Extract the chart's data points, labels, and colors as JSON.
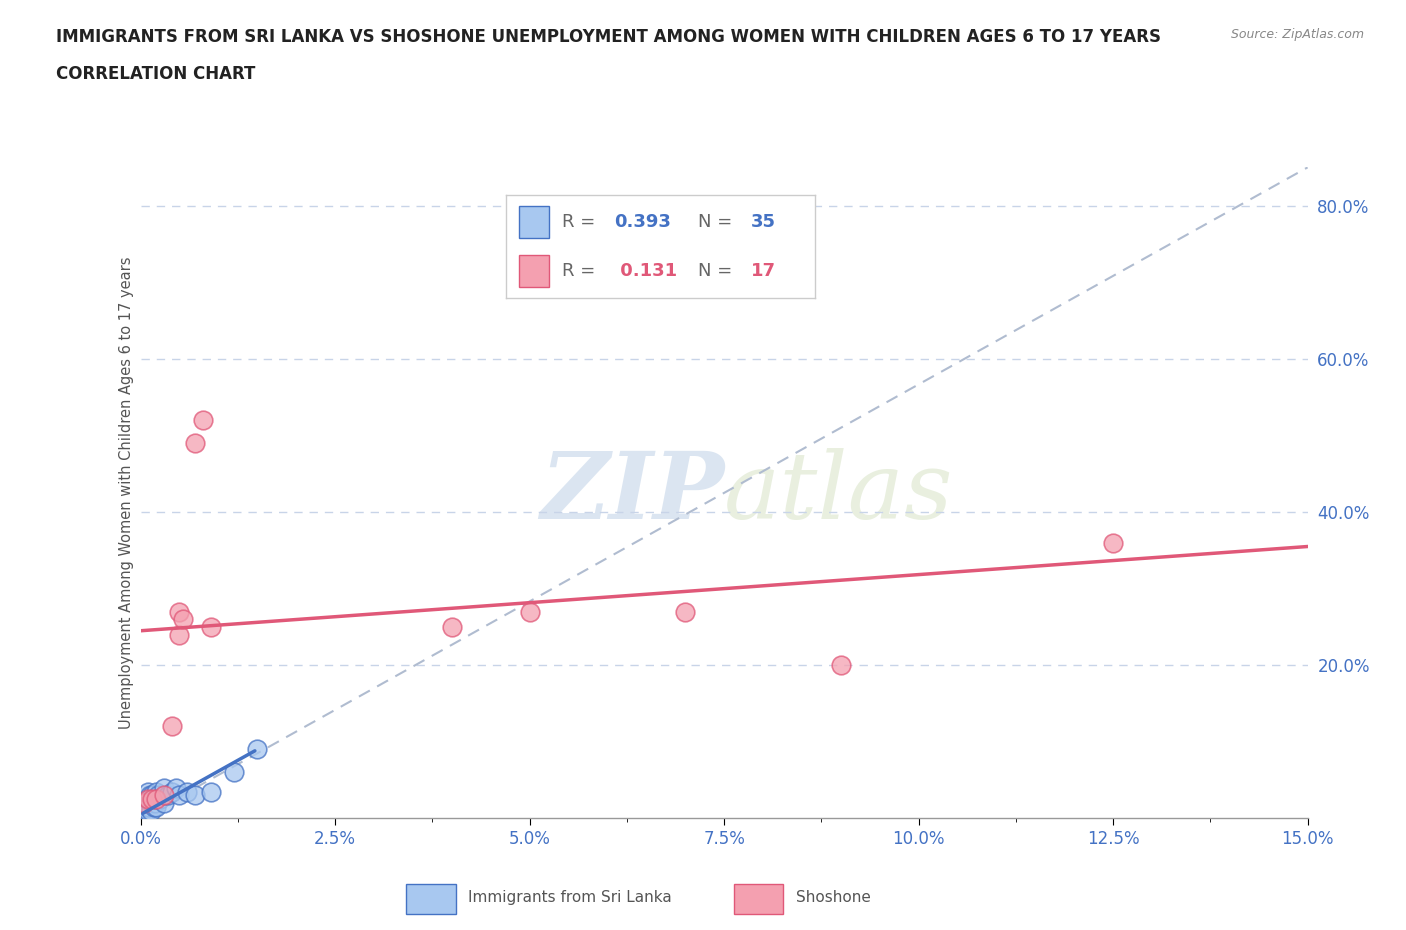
{
  "title_line1": "IMMIGRANTS FROM SRI LANKA VS SHOSHONE UNEMPLOYMENT AMONG WOMEN WITH CHILDREN AGES 6 TO 17 YEARS",
  "title_line2": "CORRELATION CHART",
  "source": "Source: ZipAtlas.com",
  "xlabel_ticks": [
    "0.0%",
    "2.5%",
    "5.0%",
    "7.5%",
    "10.0%",
    "12.5%",
    "15.0%"
  ],
  "ylabel_label": "Unemployment Among Women with Children Ages 6 to 17 years",
  "ylabel_ticks": [
    "20.0%",
    "40.0%",
    "60.0%",
    "80.0%"
  ],
  "xlim": [
    0.0,
    0.15
  ],
  "ylim": [
    0.0,
    0.85
  ],
  "watermark_zip": "ZIP",
  "watermark_atlas": "atlas",
  "color_sri_lanka": "#a8c8f0",
  "color_shoshone": "#f4a0b0",
  "color_line_sri_lanka": "#4472c4",
  "color_line_shoshone": "#e05878",
  "color_title": "#222222",
  "color_r_value": "#4472c4",
  "color_r_value2": "#e05878",
  "background_color": "#ffffff",
  "grid_color": "#c8d4e8",
  "sri_lanka_x": [
    0.0005,
    0.0005,
    0.0007,
    0.0008,
    0.0008,
    0.0009,
    0.001,
    0.001,
    0.001,
    0.001,
    0.0012,
    0.0012,
    0.0013,
    0.0015,
    0.0015,
    0.0016,
    0.0017,
    0.0018,
    0.002,
    0.002,
    0.002,
    0.0022,
    0.0025,
    0.003,
    0.003,
    0.003,
    0.0035,
    0.004,
    0.0045,
    0.005,
    0.006,
    0.007,
    0.009,
    0.012,
    0.015
  ],
  "sri_lanka_y": [
    0.01,
    0.02,
    0.01,
    0.015,
    0.025,
    0.02,
    0.01,
    0.015,
    0.025,
    0.035,
    0.02,
    0.03,
    0.01,
    0.02,
    0.03,
    0.025,
    0.015,
    0.02,
    0.015,
    0.025,
    0.035,
    0.03,
    0.025,
    0.02,
    0.03,
    0.04,
    0.03,
    0.035,
    0.04,
    0.03,
    0.035,
    0.03,
    0.035,
    0.06,
    0.09
  ],
  "shoshone_x": [
    0.0005,
    0.001,
    0.0015,
    0.002,
    0.003,
    0.004,
    0.005,
    0.005,
    0.0055,
    0.007,
    0.008,
    0.009,
    0.04,
    0.05,
    0.07,
    0.09,
    0.125
  ],
  "shoshone_y": [
    0.02,
    0.025,
    0.025,
    0.025,
    0.03,
    0.12,
    0.24,
    0.27,
    0.26,
    0.49,
    0.52,
    0.25,
    0.25,
    0.27,
    0.27,
    0.2,
    0.36
  ],
  "shoshone_line_x0": 0.0,
  "shoshone_line_x1": 0.15,
  "shoshone_line_y0": 0.245,
  "shoshone_line_y1": 0.355,
  "sri_lanka_line_x0": 0.0,
  "sri_lanka_line_x1": 0.015,
  "sri_lanka_line_y0": 0.005,
  "sri_lanka_line_y1": 0.09
}
